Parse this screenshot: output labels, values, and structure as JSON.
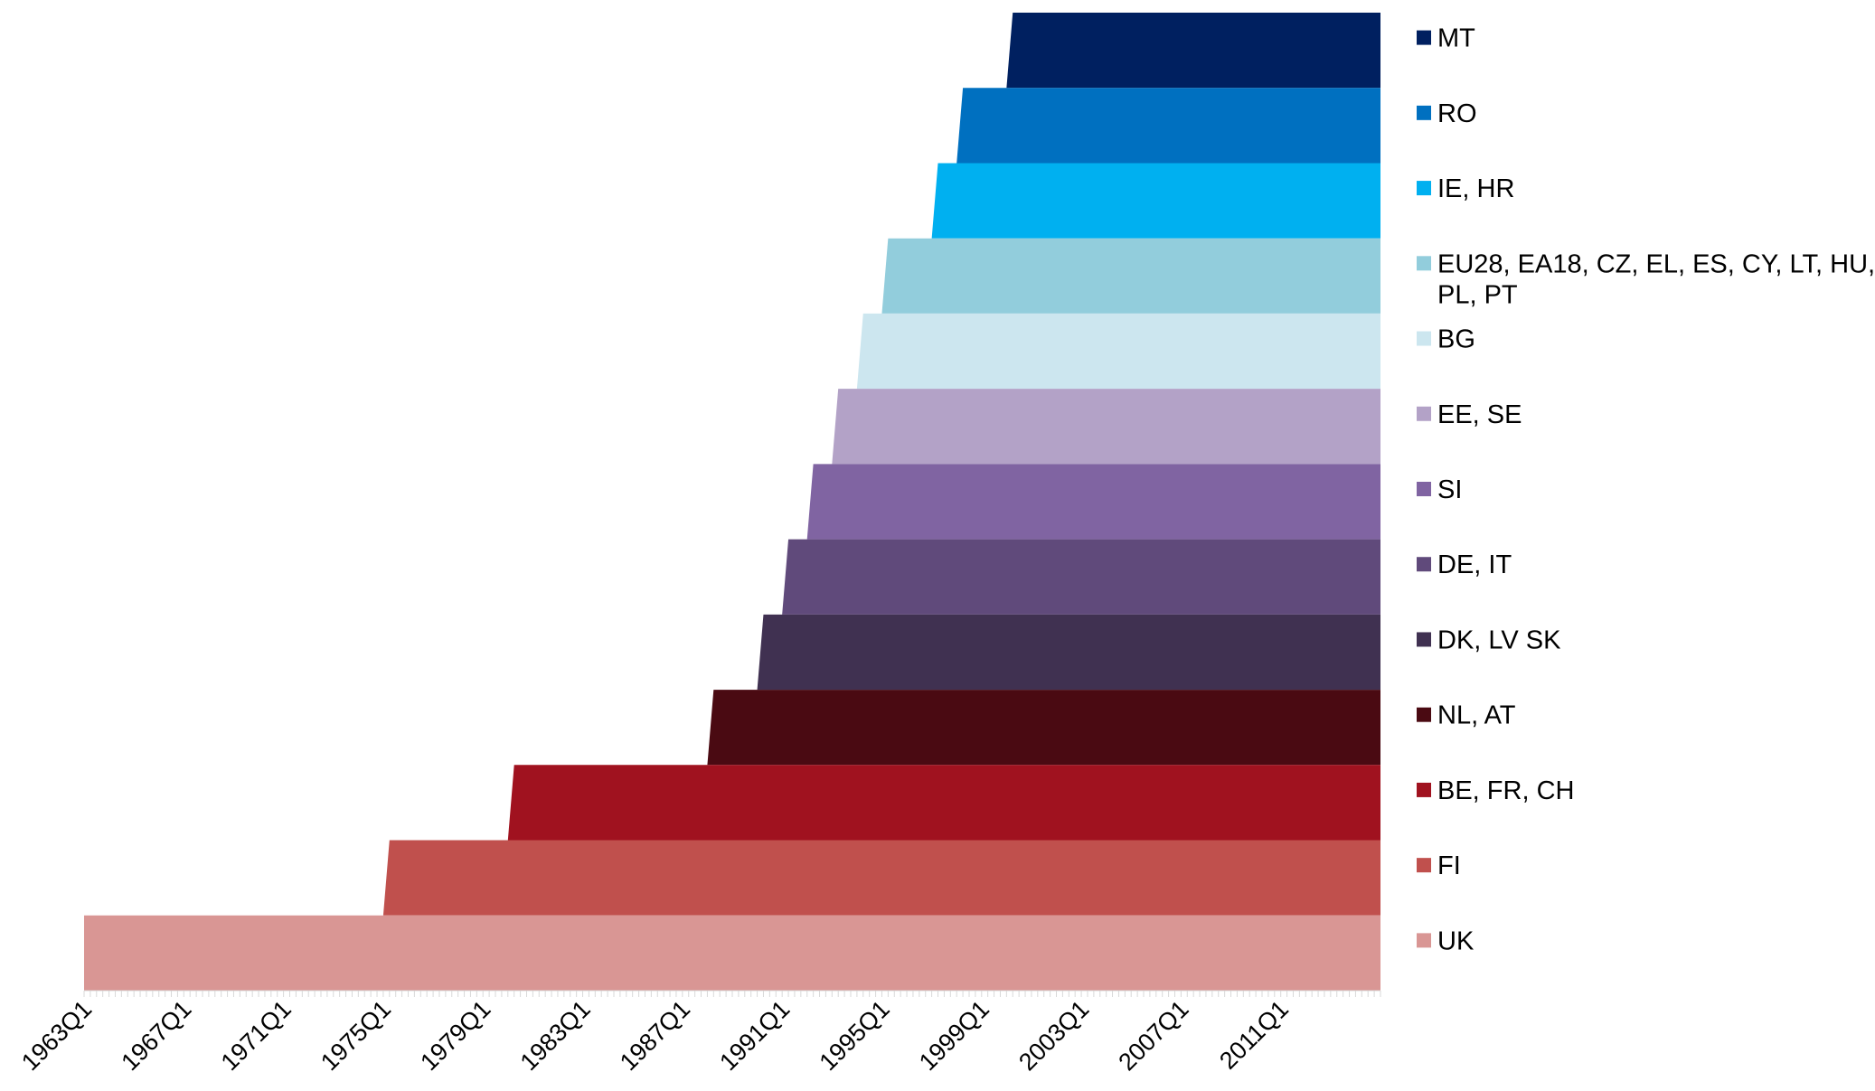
{
  "chart_data": {
    "type": "area",
    "title": "",
    "xlabel": "",
    "ylabel": "",
    "x_unit": "quarter",
    "xlim": [
      "1963Q1",
      "2014Q4"
    ],
    "x_tick_labels": [
      "1963Q1",
      "1967Q1",
      "1971Q1",
      "1975Q1",
      "1979Q1",
      "1983Q1",
      "1987Q1",
      "1991Q1",
      "1995Q1",
      "1999Q1",
      "2003Q1",
      "2007Q1",
      "2011Q1"
    ],
    "grid": false,
    "legend_position": "right",
    "series": [
      {
        "name": "MT",
        "start": "2000Q1",
        "color": "#002060"
      },
      {
        "name": "RO",
        "start": "1998Q1",
        "color": "#0070C0"
      },
      {
        "name": "IE, HR",
        "start": "1997Q1",
        "color": "#00B0F0"
      },
      {
        "name": "EU28, EA18, CZ, EL, ES, CY, LT, HU, PL, PT",
        "start": "1995Q1",
        "color": "#92CDDC"
      },
      {
        "name": "BG",
        "start": "1994Q1",
        "color": "#CCE6EF"
      },
      {
        "name": "EE, SE",
        "start": "1993Q1",
        "color": "#B3A2C7"
      },
      {
        "name": "SI",
        "start": "1992Q1",
        "color": "#8064A2"
      },
      {
        "name": "DE, IT",
        "start": "1991Q1",
        "color": "#604A7B"
      },
      {
        "name": "DK, LV SK",
        "start": "1990Q1",
        "color": "#403151"
      },
      {
        "name": "NL, AT",
        "start": "1988Q1",
        "color": "#4A0A12"
      },
      {
        "name": "BE, FR, CH",
        "start": "1980Q1",
        "color": "#A0121F"
      },
      {
        "name": "FI",
        "start": "1975Q1",
        "color": "#C0504D"
      },
      {
        "name": "UK",
        "start": "1963Q1",
        "color": "#D99694"
      }
    ]
  }
}
